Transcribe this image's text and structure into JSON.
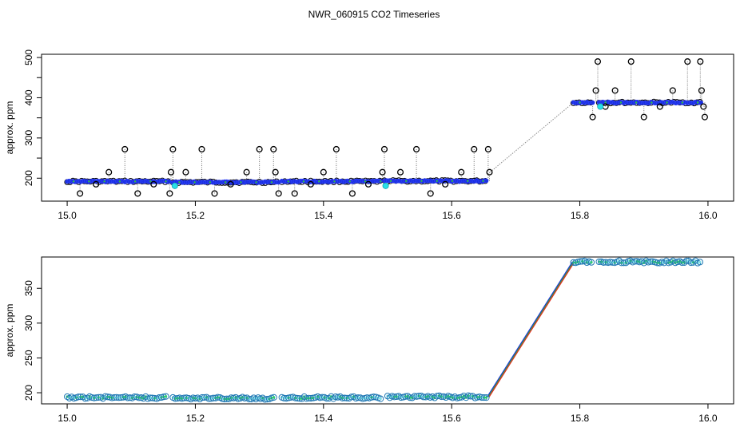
{
  "chart_data": {
    "title": "NWR_060915  CO2 Timeseries",
    "panels": [
      {
        "id": "top",
        "type": "scatter",
        "ylabel": "approx. ppm",
        "xlabel": "",
        "xlim": [
          14.96,
          16.04
        ],
        "ylim": [
          143,
          508
        ],
        "x_ticks": [
          15.0,
          15.2,
          15.4,
          15.6,
          15.8,
          16.0
        ],
        "x_tick_labels": [
          "15.0",
          "15.2",
          "15.4",
          "15.6",
          "15.8",
          "16.0"
        ],
        "y_ticks": [
          200,
          300,
          400,
          500
        ],
        "y_tick_labels": [
          "200",
          "300",
          "400",
          "500"
        ],
        "y_minor_ticks": [
          250,
          350,
          450
        ],
        "grid": false,
        "series": [
          {
            "name": "raw",
            "style": "open-circle-black",
            "segments": [
              {
                "x_start": 15.0,
                "x_end": 15.16,
                "y": 192
              },
              {
                "x_start": 15.165,
                "x_end": 15.33,
                "y": 190
              },
              {
                "x_start": 15.335,
                "x_end": 15.49,
                "y": 192
              },
              {
                "x_start": 15.495,
                "x_end": 15.655,
                "y": 193
              },
              {
                "x_start": 15.79,
                "x_end": 15.82,
                "y": 388
              },
              {
                "x_start": 15.83,
                "x_end": 15.99,
                "y": 388
              }
            ]
          },
          {
            "name": "cleaned",
            "style": "filled-blue",
            "segments": [
              {
                "x_start": 15.0,
                "x_end": 15.16,
                "y": 192
              },
              {
                "x_start": 15.165,
                "x_end": 15.33,
                "y": 190
              },
              {
                "x_start": 15.335,
                "x_end": 15.49,
                "y": 192
              },
              {
                "x_start": 15.495,
                "x_end": 15.655,
                "y": 193
              },
              {
                "x_start": 15.79,
                "x_end": 15.82,
                "y": 388
              },
              {
                "x_start": 15.83,
                "x_end": 15.99,
                "y": 388
              }
            ]
          },
          {
            "name": "outliers",
            "style": "open-circle-black",
            "points": [
              [
                15.02,
                162
              ],
              [
                15.045,
                185
              ],
              [
                15.065,
                215
              ],
              [
                15.09,
                272
              ],
              [
                15.11,
                162
              ],
              [
                15.135,
                185
              ],
              [
                15.16,
                162
              ],
              [
                15.162,
                215
              ],
              [
                15.165,
                272
              ],
              [
                15.185,
                215
              ],
              [
                15.21,
                272
              ],
              [
                15.23,
                162
              ],
              [
                15.255,
                185
              ],
              [
                15.28,
                215
              ],
              [
                15.3,
                272
              ],
              [
                15.322,
                272
              ],
              [
                15.325,
                215
              ],
              [
                15.33,
                162
              ],
              [
                15.355,
                162
              ],
              [
                15.38,
                185
              ],
              [
                15.4,
                215
              ],
              [
                15.42,
                272
              ],
              [
                15.445,
                162
              ],
              [
                15.47,
                185
              ],
              [
                15.492,
                215
              ],
              [
                15.495,
                272
              ],
              [
                15.52,
                215
              ],
              [
                15.545,
                272
              ],
              [
                15.567,
                162
              ],
              [
                15.59,
                185
              ],
              [
                15.615,
                215
              ],
              [
                15.635,
                272
              ],
              [
                15.657,
                272
              ],
              [
                15.659,
                215
              ],
              [
                15.82,
                352
              ],
              [
                15.825,
                418
              ],
              [
                15.828,
                490
              ],
              [
                15.84,
                378
              ],
              [
                15.855,
                418
              ],
              [
                15.88,
                490
              ],
              [
                15.9,
                352
              ],
              [
                15.925,
                378
              ],
              [
                15.945,
                418
              ],
              [
                15.968,
                490
              ],
              [
                15.988,
                490
              ],
              [
                15.99,
                418
              ],
              [
                15.993,
                378
              ],
              [
                15.995,
                352
              ]
            ]
          },
          {
            "name": "highlight",
            "style": "filled-cyan",
            "points": [
              [
                15.168,
                181
              ],
              [
                15.497,
                181
              ],
              [
                15.832,
                378
              ]
            ]
          },
          {
            "name": "gap-connector",
            "style": "dotted-gray-line",
            "points": [
              [
                15.66,
                215
              ],
              [
                15.79,
                388
              ]
            ]
          }
        ]
      },
      {
        "id": "bottom",
        "type": "scatter",
        "ylabel": "approx. ppm",
        "xlabel": "",
        "xlim": [
          14.96,
          16.04
        ],
        "ylim": [
          184,
          395
        ],
        "x_ticks": [
          15.0,
          15.2,
          15.4,
          15.6,
          15.8,
          16.0
        ],
        "x_tick_labels": [
          "15.0",
          "15.2",
          "15.4",
          "15.6",
          "15.8",
          "16.0"
        ],
        "y_ticks": [
          200,
          250,
          300,
          350
        ],
        "y_tick_labels": [
          "200",
          "250",
          "300",
          "350"
        ],
        "grid": false,
        "series": [
          {
            "name": "smoothed",
            "style": "open-circle-teal",
            "segments": [
              {
                "x_start": 15.0,
                "x_end": 15.155,
                "y": 193
              },
              {
                "x_start": 15.165,
                "x_end": 15.325,
                "y": 192
              },
              {
                "x_start": 15.335,
                "x_end": 15.49,
                "y": 193
              },
              {
                "x_start": 15.5,
                "x_end": 15.655,
                "y": 194
              },
              {
                "x_start": 15.79,
                "x_end": 15.82,
                "y": 388
              },
              {
                "x_start": 15.83,
                "x_end": 15.99,
                "y": 388
              }
            ]
          },
          {
            "name": "ramp",
            "style": "color-lines",
            "points": [
              [
                15.657,
                194
              ],
              [
                15.79,
                388
              ]
            ]
          }
        ]
      }
    ]
  }
}
